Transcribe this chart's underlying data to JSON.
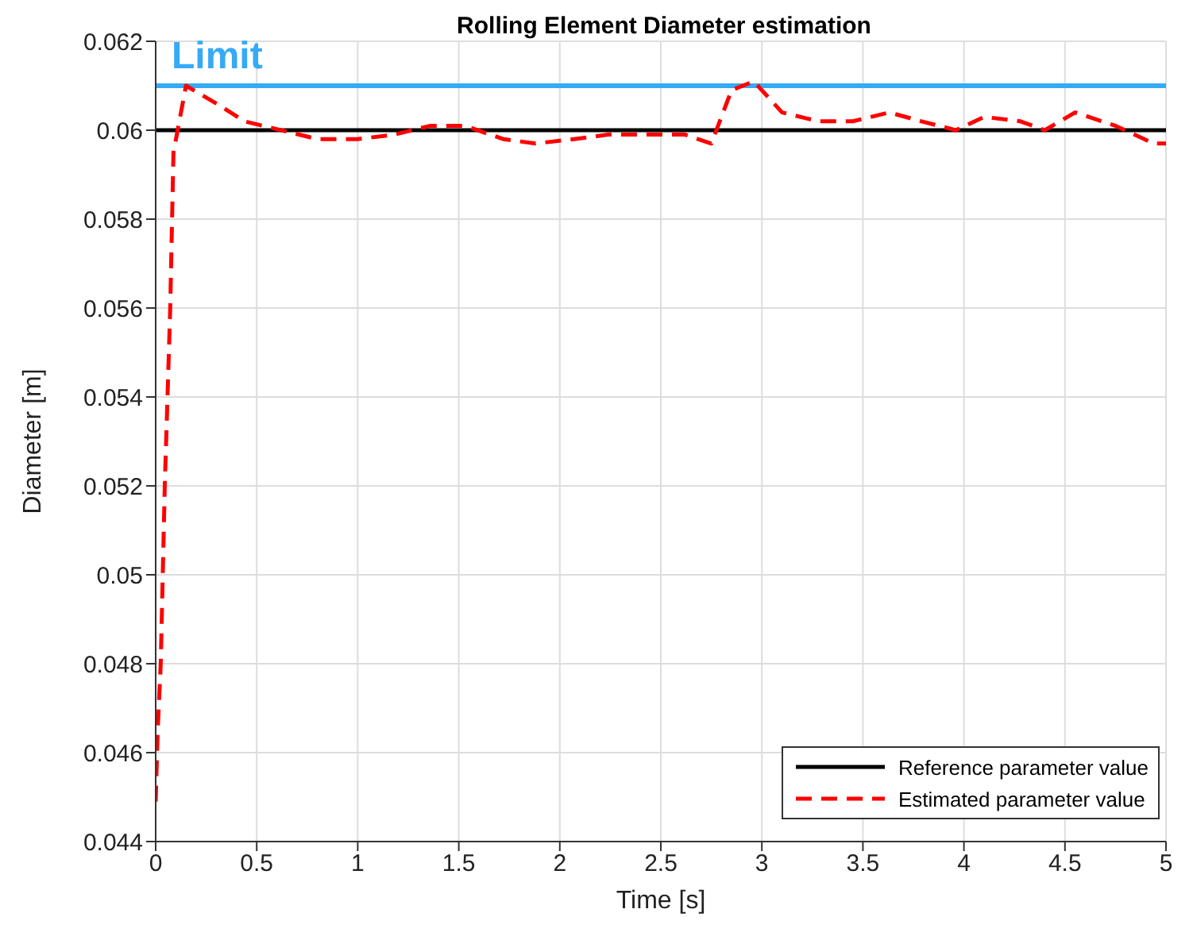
{
  "chart_data": {
    "type": "line",
    "title": "Rolling Element Diameter estimation",
    "xlabel": "Time [s]",
    "ylabel": "Diameter [m]",
    "xlim": [
      0,
      5
    ],
    "xticks": [
      0,
      0.5,
      1,
      1.5,
      2,
      2.5,
      3,
      3.5,
      4,
      4.5,
      5
    ],
    "ylim": [
      0.044,
      0.062
    ],
    "yticks": [
      0.044,
      0.046,
      0.048,
      0.05,
      0.052,
      0.054,
      0.056,
      0.058,
      0.06,
      0.062
    ],
    "grid": true,
    "legend": "bottom right",
    "ref_lines": [
      {
        "axis": "y",
        "value": 0.061,
        "label": "Limit",
        "color": "#36aaf5"
      }
    ],
    "series": [
      {
        "name": "Reference parameter value",
        "color": "#000000",
        "line_style": "solid",
        "x": [
          0,
          5
        ],
        "values": [
          0.06,
          0.06
        ]
      },
      {
        "name": "Estimated parameter value",
        "color": "#ff0000",
        "line_style": "dashed",
        "x": [
          0,
          0.01,
          0.025,
          0.045,
          0.072,
          0.088,
          0.15,
          0.3,
          0.44,
          0.62,
          0.8,
          1.0,
          1.18,
          1.36,
          1.53,
          1.72,
          1.88,
          2.07,
          2.24,
          2.43,
          2.62,
          2.75,
          2.85,
          2.96,
          3.1,
          3.28,
          3.45,
          3.63,
          3.79,
          3.96,
          4.1,
          4.28,
          4.4,
          4.55,
          4.75,
          4.94,
          5
        ],
        "values": [
          0.0449,
          0.0465,
          0.048,
          0.052,
          0.056,
          0.0595,
          0.061,
          0.0606,
          0.0602,
          0.06,
          0.0598,
          0.0598,
          0.0599,
          0.0601,
          0.0601,
          0.0598,
          0.0597,
          0.0598,
          0.0599,
          0.0599,
          0.0599,
          0.0597,
          0.0609,
          0.0611,
          0.0604,
          0.0602,
          0.0602,
          0.0604,
          0.0602,
          0.06,
          0.0603,
          0.0602,
          0.06,
          0.0604,
          0.0601,
          0.0597,
          0.0597
        ]
      }
    ]
  }
}
